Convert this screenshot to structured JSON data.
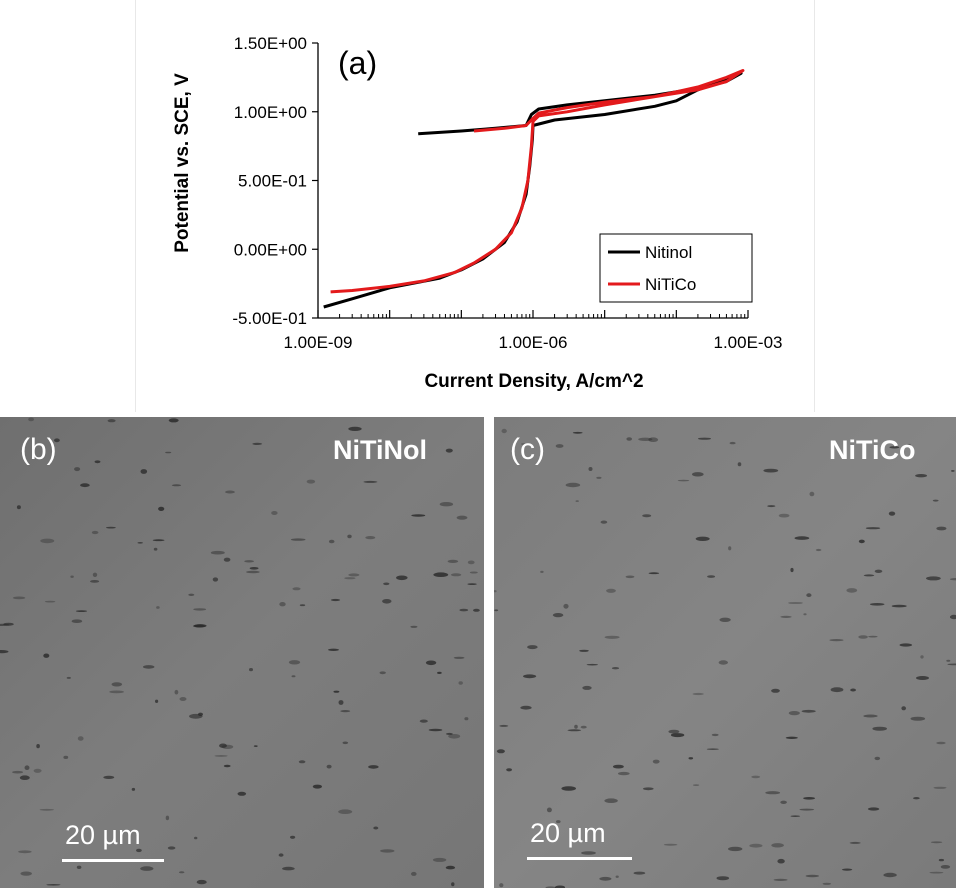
{
  "chart_data": {
    "type": "line",
    "panel_label": "(a)",
    "title": "",
    "xlabel": "Current Density, A/cm^2",
    "ylabel": "Potential  vs. SCE, V",
    "x_scale": "log",
    "xlim": [
      1e-09,
      0.001
    ],
    "ylim": [
      -0.5,
      1.5
    ],
    "x_ticks": [
      1e-09,
      1e-06,
      0.001
    ],
    "x_tick_labels": [
      "1.00E-09",
      "1.00E-06",
      "1.00E-03"
    ],
    "y_ticks": [
      -0.5,
      0,
      0.5,
      1.0,
      1.5
    ],
    "y_tick_labels": [
      "-5.00E-01",
      "0.00E+00",
      "5.00E-01",
      "1.00E+00",
      "1.50E+00"
    ],
    "grid": false,
    "legend_position": "bottom-right",
    "series": [
      {
        "name": "Nitinol",
        "color": "#000000",
        "x": [
          2.5e-08,
          1e-07,
          3e-07,
          8e-07,
          9.5e-07,
          1.2e-06,
          3e-06,
          1e-05,
          5e-05,
          0.0002,
          0.0005,
          0.0008,
          0.0005,
          0.0002,
          0.0001,
          5e-05,
          1e-05,
          2e-06,
          1e-06,
          9.8e-07,
          9e-07,
          8e-07,
          6e-07,
          4e-07,
          2e-07,
          1e-07,
          5e-08,
          1e-08,
          3e-09,
          1.2e-09
        ],
        "y": [
          0.84,
          0.86,
          0.88,
          0.9,
          0.98,
          1.02,
          1.05,
          1.08,
          1.12,
          1.17,
          1.22,
          1.28,
          1.24,
          1.16,
          1.08,
          1.04,
          0.98,
          0.94,
          0.9,
          0.8,
          0.6,
          0.4,
          0.2,
          0.05,
          -0.07,
          -0.15,
          -0.21,
          -0.28,
          -0.36,
          -0.42
        ]
      },
      {
        "name": "NiTiCo",
        "color": "#e31a1c",
        "x": [
          1.5e-07,
          4e-07,
          8e-07,
          9.5e-07,
          1.2e-06,
          3e-06,
          1e-05,
          5e-05,
          0.0002,
          0.0005,
          0.00085,
          0.0005,
          0.0002,
          5e-05,
          1e-05,
          3e-06,
          1.2e-06,
          1e-06,
          9.5e-07,
          8.5e-07,
          7e-07,
          5e-07,
          3e-07,
          1.5e-07,
          8e-08,
          3e-08,
          1e-08,
          3e-09,
          1.5e-09
        ],
        "y": [
          0.86,
          0.88,
          0.9,
          0.94,
          0.99,
          1.03,
          1.07,
          1.11,
          1.16,
          1.22,
          1.3,
          1.25,
          1.18,
          1.11,
          1.05,
          1.0,
          0.97,
          0.93,
          0.75,
          0.5,
          0.3,
          0.12,
          0.0,
          -0.1,
          -0.17,
          -0.23,
          -0.27,
          -0.3,
          -0.31
        ]
      }
    ]
  },
  "images": {
    "b": {
      "label": "(b)",
      "title": "NiTiNol",
      "scale": "20 µm"
    },
    "c": {
      "label": "(c)",
      "title": "NiTiCo",
      "scale": "20 µm"
    }
  }
}
